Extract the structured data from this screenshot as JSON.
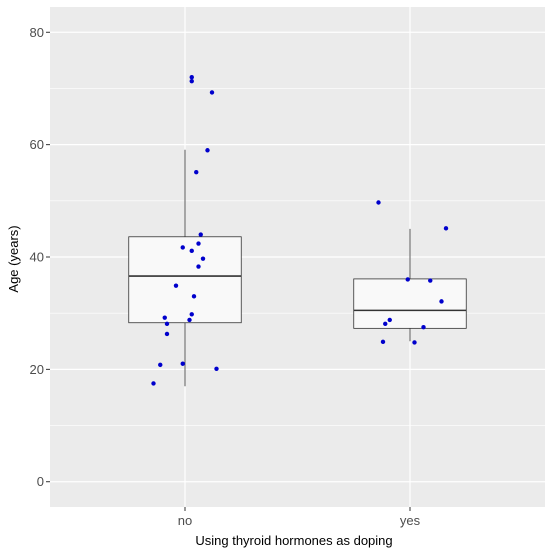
{
  "chart_data": {
    "type": "boxplot",
    "xlabel": "Using thyroid hormones as doping",
    "ylabel": "Age (years)",
    "categories": [
      "no",
      "yes"
    ],
    "ylim": [
      -4.5,
      84.5
    ],
    "yticks": [
      0,
      20,
      40,
      60,
      80
    ],
    "grid": true,
    "boxes": [
      {
        "category": "no",
        "whisker_low": 17,
        "q1": 28.3,
        "median": 36.6,
        "q3": 43.6,
        "whisker_high": 59.1
      },
      {
        "category": "yes",
        "whisker_low": 25,
        "q1": 27.3,
        "median": 30.5,
        "q3": 36.1,
        "whisker_high": 45
      }
    ],
    "points": [
      {
        "category": "no",
        "jitter": 0.03,
        "y": 72.0
      },
      {
        "category": "no",
        "jitter": 0.03,
        "y": 71.3
      },
      {
        "category": "no",
        "jitter": 0.12,
        "y": 69.3
      },
      {
        "category": "no",
        "jitter": 0.1,
        "y": 59.0
      },
      {
        "category": "no",
        "jitter": 0.05,
        "y": 55.1
      },
      {
        "category": "no",
        "jitter": 0.07,
        "y": 44.0
      },
      {
        "category": "no",
        "jitter": 0.06,
        "y": 42.4
      },
      {
        "category": "no",
        "jitter": -0.01,
        "y": 41.7
      },
      {
        "category": "no",
        "jitter": 0.03,
        "y": 41.1
      },
      {
        "category": "no",
        "jitter": 0.08,
        "y": 39.7
      },
      {
        "category": "no",
        "jitter": 0.06,
        "y": 38.3
      },
      {
        "category": "no",
        "jitter": -0.04,
        "y": 34.9
      },
      {
        "category": "no",
        "jitter": 0.04,
        "y": 33.0
      },
      {
        "category": "no",
        "jitter": 0.03,
        "y": 29.8
      },
      {
        "category": "no",
        "jitter": -0.09,
        "y": 29.2
      },
      {
        "category": "no",
        "jitter": 0.02,
        "y": 28.8
      },
      {
        "category": "no",
        "jitter": -0.08,
        "y": 28.1
      },
      {
        "category": "no",
        "jitter": -0.08,
        "y": 26.3
      },
      {
        "category": "no",
        "jitter": -0.11,
        "y": 20.8
      },
      {
        "category": "no",
        "jitter": -0.01,
        "y": 21.0
      },
      {
        "category": "no",
        "jitter": 0.14,
        "y": 20.1
      },
      {
        "category": "no",
        "jitter": -0.14,
        "y": 17.5
      },
      {
        "category": "yes",
        "jitter": -0.14,
        "y": 49.7
      },
      {
        "category": "yes",
        "jitter": 0.16,
        "y": 45.1
      },
      {
        "category": "yes",
        "jitter": -0.01,
        "y": 36.0
      },
      {
        "category": "yes",
        "jitter": 0.09,
        "y": 35.8
      },
      {
        "category": "yes",
        "jitter": 0.14,
        "y": 32.1
      },
      {
        "category": "yes",
        "jitter": -0.09,
        "y": 28.8
      },
      {
        "category": "yes",
        "jitter": -0.11,
        "y": 28.1
      },
      {
        "category": "yes",
        "jitter": 0.06,
        "y": 27.5
      },
      {
        "category": "yes",
        "jitter": -0.12,
        "y": 24.9
      },
      {
        "category": "yes",
        "jitter": 0.02,
        "y": 24.8
      }
    ],
    "colors": {
      "panel": "#ebebeb",
      "grid": "#ffffff",
      "box_fill": "#f9f9f9",
      "box_line": "#333333",
      "point": "#0000cc"
    }
  }
}
